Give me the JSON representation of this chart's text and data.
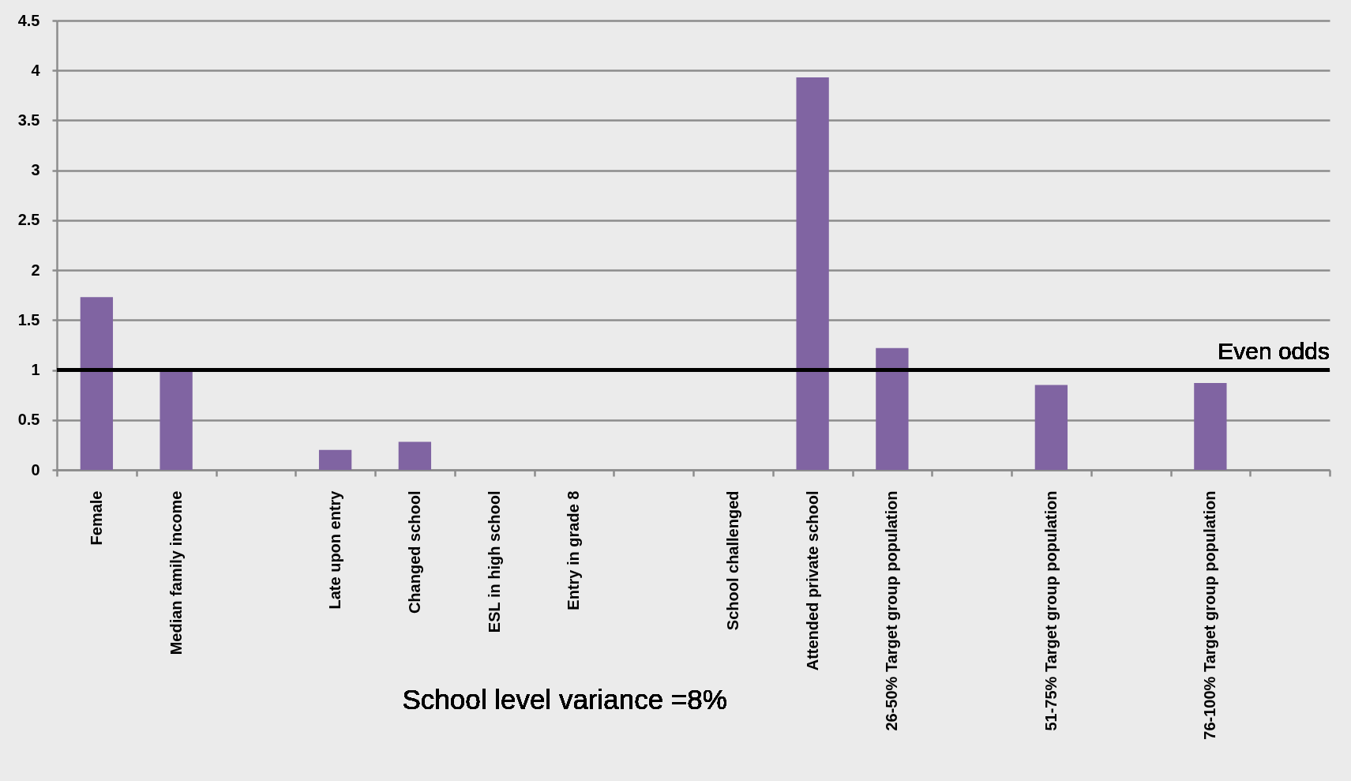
{
  "chart_data": {
    "type": "bar",
    "categories": [
      "Female",
      "Median family income",
      null,
      "Late upon entry",
      "Changed school",
      "ESL in high school",
      "Entry in grade 8",
      null,
      "School challenged",
      "Attended private school",
      "26-50% Target group population",
      null,
      "51-75% Target group population",
      null,
      "76-100% Target group population",
      null
    ],
    "values": [
      1.73,
      1.0,
      null,
      0.2,
      0.28,
      null,
      null,
      null,
      null,
      3.93,
      1.22,
      null,
      0.85,
      null,
      0.87,
      null
    ],
    "color": "#8064a2",
    "ylim": [
      0,
      4.5
    ],
    "yticks": [
      0,
      0.5,
      1,
      1.5,
      2,
      2.5,
      3,
      3.5,
      4,
      4.5
    ],
    "grid": "y",
    "ref_lines": [
      {
        "axis": "y",
        "value": 1,
        "label": "Even odds",
        "color": "#000000"
      }
    ],
    "annotations": [
      "School level variance =8%"
    ]
  }
}
